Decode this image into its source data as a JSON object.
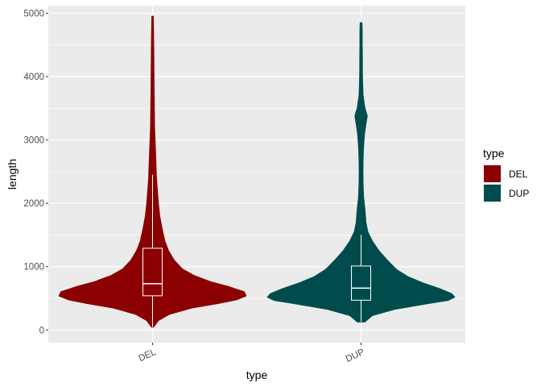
{
  "chart_data": {
    "type": "violin",
    "xlabel": "type",
    "ylabel": "length",
    "ylim": [
      -200,
      5120
    ],
    "y_ticks": [
      0,
      1000,
      2000,
      3000,
      4000,
      5000
    ],
    "y_tick_labels": [
      "0",
      "1000",
      "2000",
      "3000",
      "4000",
      "5000"
    ],
    "categories": [
      "DEL",
      "DUP"
    ],
    "grid": true,
    "legend": {
      "title": "type",
      "placement": "right",
      "entries": [
        "DEL",
        "DUP"
      ]
    },
    "series": [
      {
        "name": "DEL",
        "color": "#8b0000",
        "min": 50,
        "max": 4950,
        "box": {
          "q1": 540,
          "median": 730,
          "q3": 1290,
          "whisker_low": 50,
          "whisker_high": 2450
        },
        "density": [
          [
            50,
            0.01
          ],
          [
            150,
            0.06
          ],
          [
            250,
            0.18
          ],
          [
            350,
            0.42
          ],
          [
            420,
            0.7
          ],
          [
            480,
            0.9
          ],
          [
            540,
            1.0
          ],
          [
            600,
            0.98
          ],
          [
            680,
            0.82
          ],
          [
            760,
            0.62
          ],
          [
            860,
            0.44
          ],
          [
            960,
            0.32
          ],
          [
            1100,
            0.23
          ],
          [
            1250,
            0.17
          ],
          [
            1400,
            0.13
          ],
          [
            1600,
            0.1
          ],
          [
            1800,
            0.075
          ],
          [
            2000,
            0.06
          ],
          [
            2200,
            0.05
          ],
          [
            2400,
            0.04
          ],
          [
            2600,
            0.035
          ],
          [
            2800,
            0.03
          ],
          [
            3000,
            0.025
          ],
          [
            3200,
            0.02
          ],
          [
            3500,
            0.017
          ],
          [
            3800,
            0.015
          ],
          [
            4100,
            0.013
          ],
          [
            4400,
            0.011
          ],
          [
            4700,
            0.009
          ],
          [
            4950,
            0.006
          ]
        ]
      },
      {
        "name": "DUP",
        "color": "#004c4c",
        "min": 130,
        "max": 4850,
        "box": {
          "q1": 470,
          "median": 660,
          "q3": 1010,
          "whisker_low": 130,
          "whisker_high": 1500
        },
        "density": [
          [
            130,
            0.04
          ],
          [
            230,
            0.12
          ],
          [
            330,
            0.36
          ],
          [
            420,
            0.72
          ],
          [
            470,
            0.93
          ],
          [
            520,
            1.0
          ],
          [
            570,
            0.97
          ],
          [
            650,
            0.84
          ],
          [
            740,
            0.66
          ],
          [
            840,
            0.5
          ],
          [
            950,
            0.38
          ],
          [
            1100,
            0.28
          ],
          [
            1250,
            0.19
          ],
          [
            1400,
            0.12
          ],
          [
            1550,
            0.07
          ],
          [
            1700,
            0.05
          ],
          [
            1900,
            0.04
          ],
          [
            2100,
            0.025
          ],
          [
            2300,
            0.02
          ],
          [
            2500,
            0.018
          ],
          [
            2700,
            0.02
          ],
          [
            2900,
            0.025
          ],
          [
            3100,
            0.035
          ],
          [
            3250,
            0.05
          ],
          [
            3380,
            0.065
          ],
          [
            3500,
            0.04
          ],
          [
            3700,
            0.02
          ],
          [
            3900,
            0.015
          ],
          [
            4100,
            0.012
          ],
          [
            4300,
            0.012
          ],
          [
            4500,
            0.01
          ],
          [
            4700,
            0.01
          ],
          [
            4850,
            0.008
          ]
        ]
      }
    ]
  }
}
